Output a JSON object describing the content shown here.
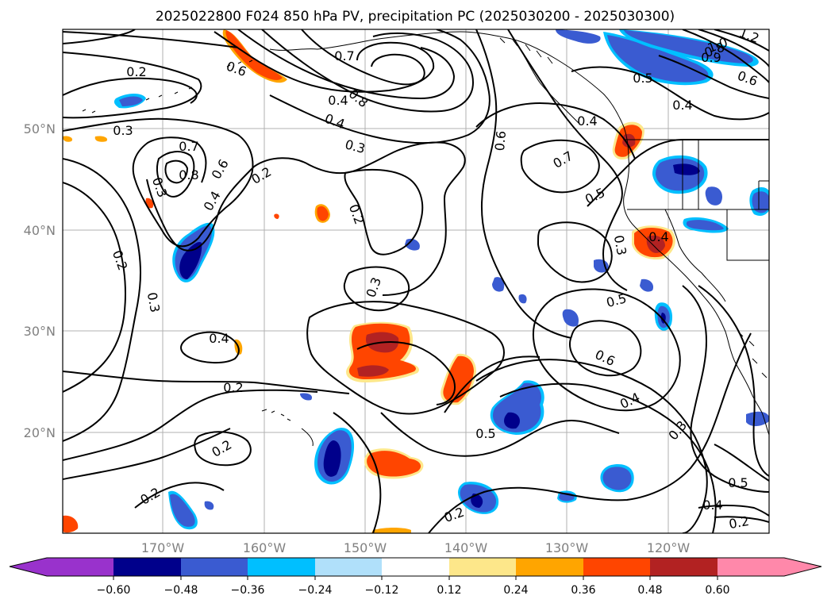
{
  "title": "2025022800 F024 850 hPa PV, precipitation PC (2025030200 - 2025030300)",
  "map": {
    "lat_ticks": [
      "50°N",
      "40°N",
      "30°N",
      "20°N"
    ],
    "lon_ticks": [
      "170°W",
      "160°W",
      "150°W",
      "140°W",
      "130°W",
      "120°W"
    ]
  },
  "colorbar": {
    "colors": [
      "#9932cc",
      "#00008b",
      "#3a5bd1",
      "#00bfff",
      "#b0e0fa",
      "#ffffff",
      "#fde78a",
      "#ffa500",
      "#ff4500",
      "#b22222",
      "#ff88aa"
    ],
    "tick_labels": [
      "−0.60",
      "−0.48",
      "−0.36",
      "−0.24",
      "−0.12",
      "0.12",
      "0.24",
      "0.36",
      "0.48",
      "0.60"
    ]
  },
  "contour_labels": [
    "0.2",
    "0.3",
    "0.3",
    "0.2",
    "0.3",
    "0.7",
    "0.8",
    "0.6",
    "0.4",
    "0.2",
    "0.6",
    "0.7",
    "0.8",
    "0.4",
    "0.3",
    "0.2",
    "0.3",
    "0.6",
    "0.7",
    "0.5",
    "0.3",
    "0.4",
    "0.5",
    "0.6",
    "0.4",
    "0.3",
    "0.5",
    "0.4",
    "0.2",
    "0.2",
    "0.2",
    "0.2",
    "0.2",
    "0.4",
    "0.5",
    "1.0",
    "1.2",
    "0.9",
    "0.8",
    "0.6",
    "0.5",
    "0.4",
    "0.4",
    "0.4"
  ]
}
